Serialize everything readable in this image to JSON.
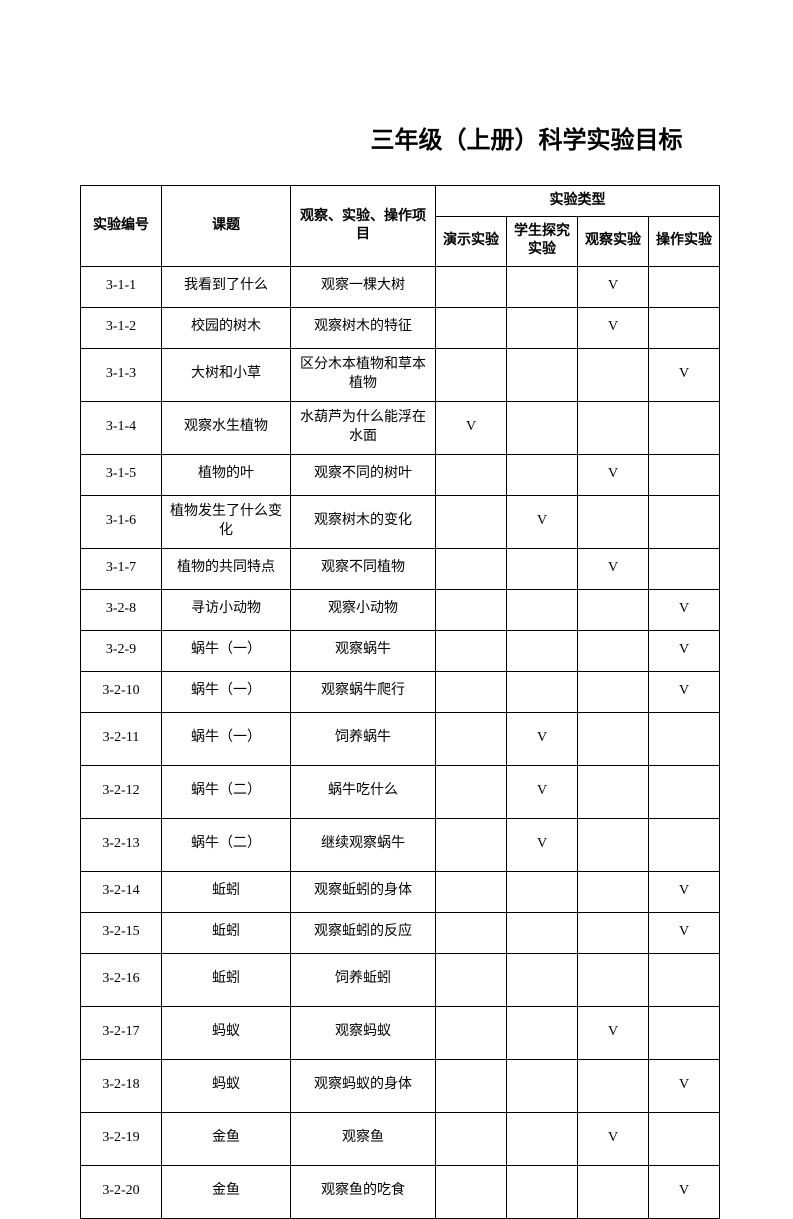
{
  "title": "三年级（上册）科学实验目标",
  "headers": {
    "id": "实验编号",
    "topic": "课题",
    "item": "观察、实验、操作项目",
    "type_group": "实验类型",
    "type_demo": "演示实验",
    "type_student": "学生探究实验",
    "type_observe": "观察实验",
    "type_operate": "操作实验"
  },
  "mark": "V",
  "rows": [
    {
      "id": "3-1-1",
      "topic": "我看到了什么",
      "item": "观察一棵大树",
      "demo": "",
      "student": "",
      "observe": "V",
      "operate": ""
    },
    {
      "id": "3-1-2",
      "topic": "校园的树木",
      "item": "观察树木的特征",
      "demo": "",
      "student": "",
      "observe": "V",
      "operate": ""
    },
    {
      "id": "3-1-3",
      "topic": "大树和小草",
      "item": "区分木本植物和草本植物",
      "demo": "",
      "student": "",
      "observe": "",
      "operate": "V"
    },
    {
      "id": "3-1-4",
      "topic": "观察水生植物",
      "item": "水葫芦为什么能浮在水面",
      "demo": "V",
      "student": "",
      "observe": "",
      "operate": ""
    },
    {
      "id": "3-1-5",
      "topic": "植物的叶",
      "item": "观察不同的树叶",
      "demo": "",
      "student": "",
      "observe": "V",
      "operate": ""
    },
    {
      "id": "3-1-6",
      "topic": "植物发生了什么变化",
      "item": "观察树木的变化",
      "demo": "",
      "student": "V",
      "observe": "",
      "operate": ""
    },
    {
      "id": "3-1-7",
      "topic": "植物的共同特点",
      "item": "观察不同植物",
      "demo": "",
      "student": "",
      "observe": "V",
      "operate": ""
    },
    {
      "id": "3-2-8",
      "topic": "寻访小动物",
      "item": "观察小动物",
      "demo": "",
      "student": "",
      "observe": "",
      "operate": "V"
    },
    {
      "id": "3-2-9",
      "topic": "蜗牛（一）",
      "item": "观察蜗牛",
      "demo": "",
      "student": "",
      "observe": "",
      "operate": "V"
    },
    {
      "id": "3-2-10",
      "topic": "蜗牛（一）",
      "item": "观察蜗牛爬行",
      "demo": "",
      "student": "",
      "observe": "",
      "operate": "V"
    },
    {
      "id": "3-2-11",
      "topic": "蜗牛（一）",
      "item": "饲养蜗牛",
      "demo": "",
      "student": "V",
      "observe": "",
      "operate": ""
    },
    {
      "id": "3-2-12",
      "topic": "蜗牛（二）",
      "item": "蜗牛吃什么",
      "demo": "",
      "student": "V",
      "observe": "",
      "operate": ""
    },
    {
      "id": "3-2-13",
      "topic": "蜗牛（二）",
      "item": "继续观察蜗牛",
      "demo": "",
      "student": "V",
      "observe": "",
      "operate": ""
    },
    {
      "id": "3-2-14",
      "topic": "蚯蚓",
      "item": "观察蚯蚓的身体",
      "demo": "",
      "student": "",
      "observe": "",
      "operate": "V"
    },
    {
      "id": "3-2-15",
      "topic": "蚯蚓",
      "item": "观察蚯蚓的反应",
      "demo": "",
      "student": "",
      "observe": "",
      "operate": "V"
    },
    {
      "id": "3-2-16",
      "topic": "蚯蚓",
      "item": "饲养蚯蚓",
      "demo": "",
      "student": "",
      "observe": "",
      "operate": ""
    },
    {
      "id": "3-2-17",
      "topic": "蚂蚁",
      "item": "观察蚂蚁",
      "demo": "",
      "student": "",
      "observe": "V",
      "operate": ""
    },
    {
      "id": "3-2-18",
      "topic": "蚂蚁",
      "item": "观察蚂蚁的身体",
      "demo": "",
      "student": "",
      "observe": "",
      "operate": "V"
    },
    {
      "id": "3-2-19",
      "topic": "金鱼",
      "item": "观察鱼",
      "demo": "",
      "student": "",
      "observe": "V",
      "operate": ""
    },
    {
      "id": "3-2-20",
      "topic": "金鱼",
      "item": "观察鱼的吃食",
      "demo": "",
      "student": "",
      "observe": "",
      "operate": "V"
    }
  ],
  "tall_rows": [
    2,
    3,
    5,
    10,
    11,
    12,
    15,
    16,
    17,
    18,
    19
  ]
}
